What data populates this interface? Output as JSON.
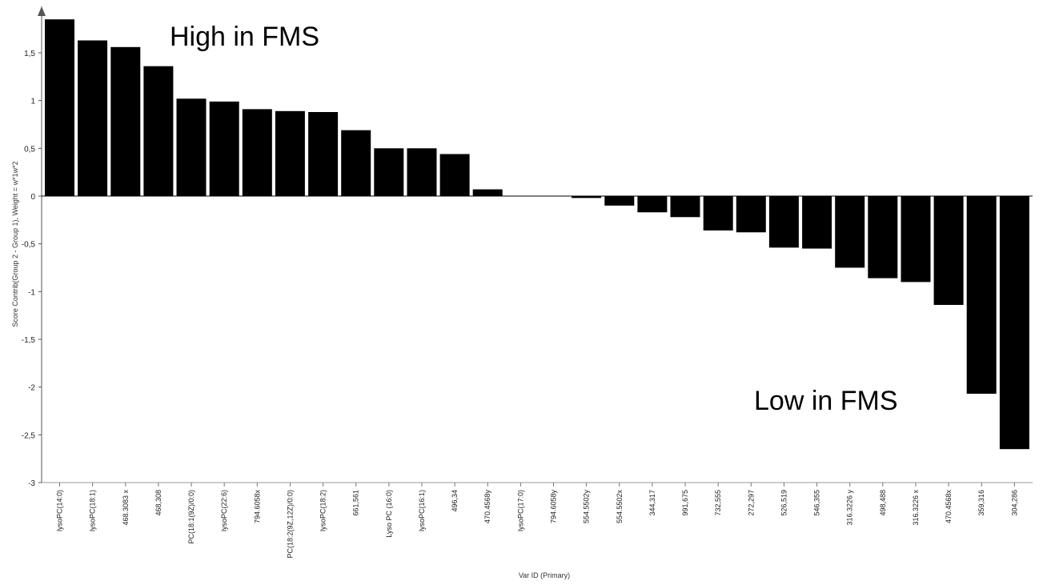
{
  "chart_data": {
    "type": "bar",
    "title": "",
    "xlabel": "Var ID (Primary)",
    "ylabel": "Score Contrib(Group 2 - Group 1), Weight = w*1w*2",
    "ylim": [
      -3,
      1.85
    ],
    "yticks": [
      1.5,
      1,
      0.5,
      0,
      -0.5,
      -1,
      -1.5,
      -2,
      -2.5,
      -3
    ],
    "ytick_labels": [
      "1,5",
      "1",
      "0,5",
      "0",
      "-0,5",
      "-1",
      "-1,5",
      "-2",
      "-2,5",
      "-3"
    ],
    "grid": false,
    "color": "#000000",
    "categories": [
      "lysoPC(14:0)",
      "lysoPC(18:1)",
      "468.3083 x",
      "468,308",
      "PC(18:1(9Z)/0:0)",
      "lysoPC(22:6)",
      "794.6058x",
      "PC(18:2(9Z,12Z)/0:0)",
      "lysoPC(18:2)",
      "661,561",
      "Lyso PC (16:0)",
      "lysoPC(16:1)",
      "496,34",
      "470.4568y",
      "lysoPC(17:0)",
      "794.6058y",
      "554.5502y",
      "554.5502x",
      "344,317",
      "991,675",
      "732,555",
      "272,297",
      "526,519",
      "546,355",
      "316.3226 y",
      "498,488",
      "316.3226 x",
      "470.4568x",
      "359,316",
      "304,286"
    ],
    "values": [
      1.85,
      1.63,
      1.56,
      1.36,
      1.02,
      0.99,
      0.91,
      0.89,
      0.88,
      0.69,
      0.5,
      0.5,
      0.44,
      0.07,
      0.0,
      0.0,
      -0.02,
      -0.1,
      -0.17,
      -0.22,
      -0.36,
      -0.38,
      -0.54,
      -0.55,
      -0.75,
      -0.86,
      -0.9,
      -1.14,
      -2.07,
      -2.65
    ],
    "annotations": [
      "High in FMS",
      "Low in FMS"
    ]
  }
}
